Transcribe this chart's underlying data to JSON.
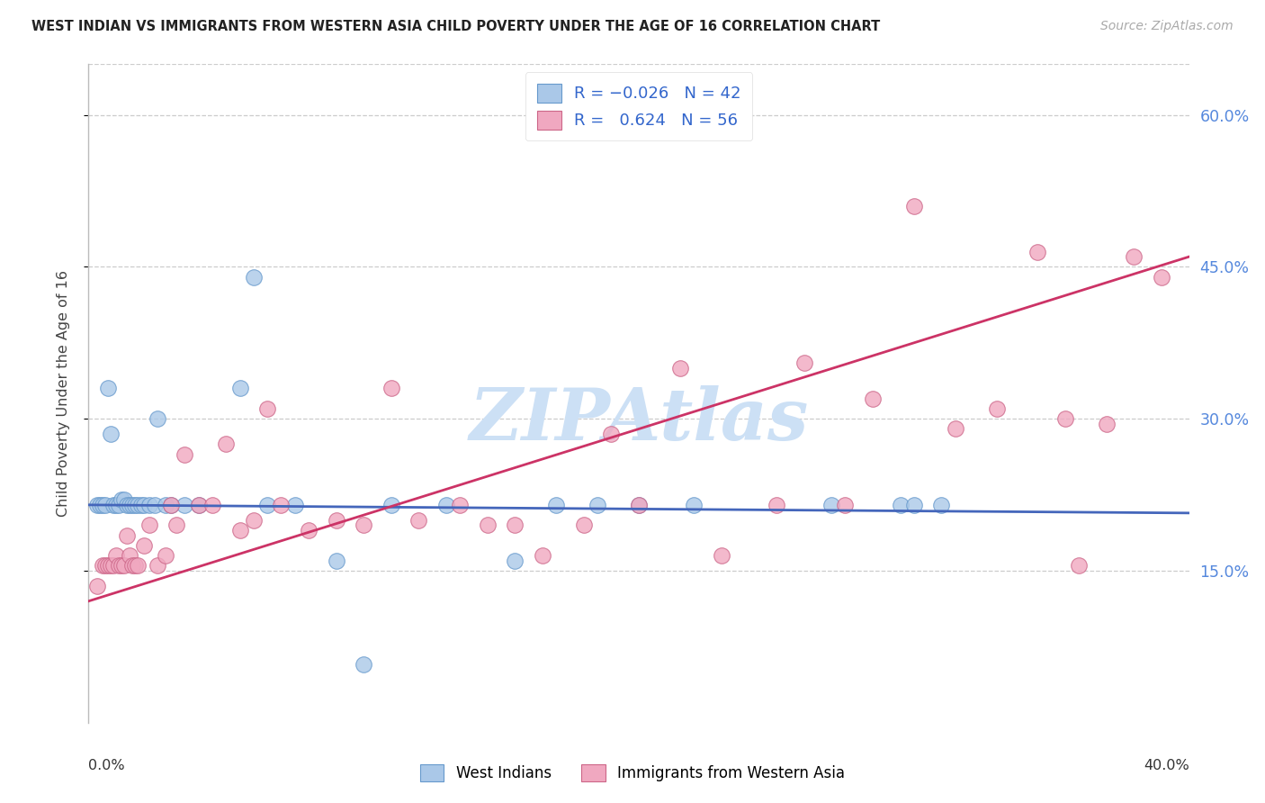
{
  "title": "WEST INDIAN VS IMMIGRANTS FROM WESTERN ASIA CHILD POVERTY UNDER THE AGE OF 16 CORRELATION CHART",
  "source": "Source: ZipAtlas.com",
  "ylabel": "Child Poverty Under the Age of 16",
  "xlim": [
    0.0,
    0.4
  ],
  "ylim": [
    0.0,
    0.65
  ],
  "yticks": [
    0.15,
    0.3,
    0.45,
    0.6
  ],
  "ytick_labels": [
    "15.0%",
    "30.0%",
    "45.0%",
    "60.0%"
  ],
  "blue_color": "#aac8e8",
  "pink_color": "#f0a8c0",
  "blue_edge_color": "#6699cc",
  "pink_edge_color": "#cc6688",
  "blue_line_color": "#4466bb",
  "pink_line_color": "#cc3366",
  "watermark": "ZIPAtlas",
  "watermark_color": "#cce0f5",
  "blue_x": [
    0.003,
    0.004,
    0.005,
    0.006,
    0.007,
    0.008,
    0.009,
    0.01,
    0.011,
    0.012,
    0.013,
    0.014,
    0.015,
    0.016,
    0.017,
    0.018,
    0.019,
    0.02,
    0.022,
    0.024,
    0.025,
    0.028,
    0.03,
    0.035,
    0.04,
    0.055,
    0.06,
    0.065,
    0.075,
    0.09,
    0.1,
    0.11,
    0.13,
    0.155,
    0.17,
    0.185,
    0.2,
    0.22,
    0.27,
    0.295,
    0.3,
    0.31
  ],
  "blue_y": [
    0.215,
    0.215,
    0.215,
    0.215,
    0.33,
    0.285,
    0.215,
    0.215,
    0.215,
    0.22,
    0.22,
    0.215,
    0.215,
    0.215,
    0.215,
    0.215,
    0.215,
    0.215,
    0.215,
    0.215,
    0.3,
    0.215,
    0.215,
    0.215,
    0.215,
    0.33,
    0.44,
    0.215,
    0.215,
    0.16,
    0.058,
    0.215,
    0.215,
    0.16,
    0.215,
    0.215,
    0.215,
    0.215,
    0.215,
    0.215,
    0.215,
    0.215
  ],
  "pink_x": [
    0.003,
    0.005,
    0.006,
    0.007,
    0.008,
    0.009,
    0.01,
    0.011,
    0.012,
    0.013,
    0.014,
    0.015,
    0.016,
    0.017,
    0.018,
    0.02,
    0.022,
    0.025,
    0.028,
    0.03,
    0.032,
    0.035,
    0.04,
    0.045,
    0.05,
    0.055,
    0.06,
    0.065,
    0.07,
    0.08,
    0.09,
    0.1,
    0.11,
    0.12,
    0.135,
    0.145,
    0.155,
    0.165,
    0.18,
    0.19,
    0.2,
    0.215,
    0.23,
    0.25,
    0.26,
    0.275,
    0.285,
    0.3,
    0.315,
    0.33,
    0.345,
    0.355,
    0.36,
    0.37,
    0.38,
    0.39
  ],
  "pink_y": [
    0.135,
    0.155,
    0.155,
    0.155,
    0.155,
    0.155,
    0.165,
    0.155,
    0.155,
    0.155,
    0.185,
    0.165,
    0.155,
    0.155,
    0.155,
    0.175,
    0.195,
    0.155,
    0.165,
    0.215,
    0.195,
    0.265,
    0.215,
    0.215,
    0.275,
    0.19,
    0.2,
    0.31,
    0.215,
    0.19,
    0.2,
    0.195,
    0.33,
    0.2,
    0.215,
    0.195,
    0.195,
    0.165,
    0.195,
    0.285,
    0.215,
    0.35,
    0.165,
    0.215,
    0.355,
    0.215,
    0.32,
    0.51,
    0.29,
    0.31,
    0.465,
    0.3,
    0.155,
    0.295,
    0.46,
    0.44
  ],
  "blue_line_x0": 0.0,
  "blue_line_x1": 0.4,
  "blue_line_y0": 0.215,
  "blue_line_y1": 0.207,
  "pink_line_x0": 0.0,
  "pink_line_x1": 0.4,
  "pink_line_y0": 0.12,
  "pink_line_y1": 0.46
}
